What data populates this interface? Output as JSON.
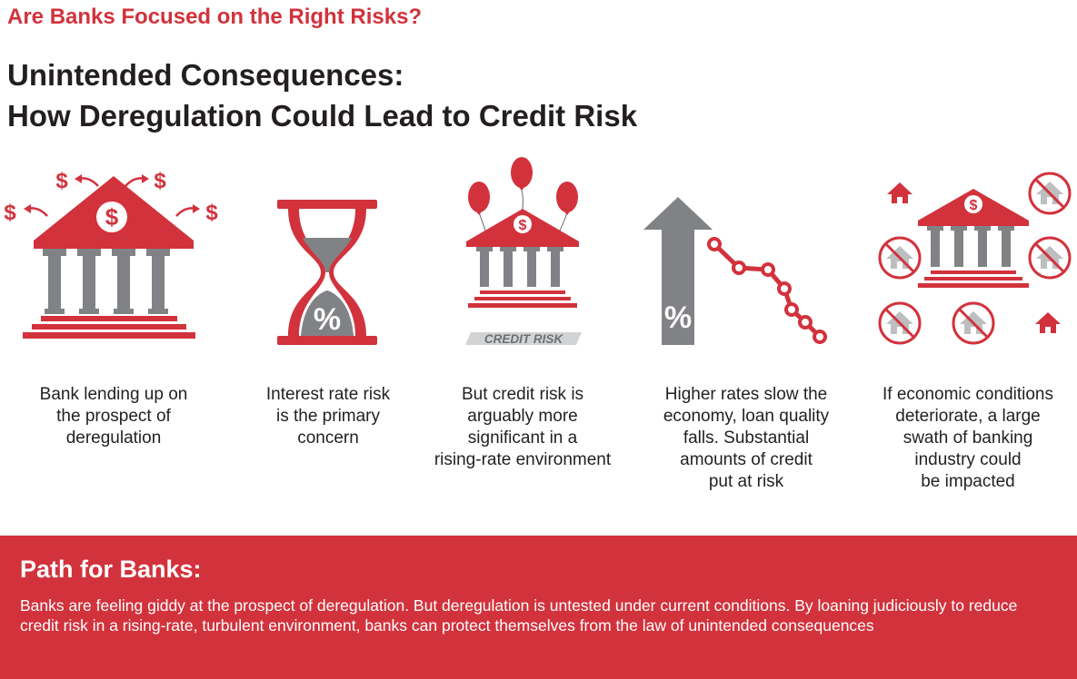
{
  "kicker": "Are Banks Focused on the Right Risks?",
  "title_line1": "Unintended Consequences:",
  "title_line2": "How Deregulation Could Lead to Credit Risk",
  "colors": {
    "red": "#d2323c",
    "gray": "#808285",
    "light_gray": "#bcbec0",
    "text": "#231f20"
  },
  "steps": [
    {
      "icon": "bank-with-dollars-icon",
      "caption": [
        "Bank lending up on",
        "the prospect of",
        "deregulation"
      ]
    },
    {
      "icon": "hourglass-icon",
      "glyph": "%",
      "caption": [
        "Interest rate risk",
        "is the primary",
        "concern"
      ]
    },
    {
      "icon": "bank-with-balloons-icon",
      "glyph": "$",
      "sign": "CREDIT RISK",
      "caption": [
        "But credit risk is",
        "arguably more",
        "significant in a",
        "rising-rate environment"
      ]
    },
    {
      "icon": "rising-rates-falling-quality-icon",
      "glyph": "%",
      "caption": [
        "Higher rates slow the",
        "economy, loan quality",
        "falls. Substantial",
        "amounts of credit",
        "put at risk"
      ]
    },
    {
      "icon": "bank-with-crossed-houses-icon",
      "glyph": "$",
      "caption": [
        "If economic conditions",
        "deteriorate, a large",
        "swath of banking",
        "industry could",
        "be impacted"
      ]
    }
  ],
  "currency_symbol": "$",
  "path": {
    "heading": "Path for Banks:",
    "body": "Banks are feeling giddy at the prospect of deregulation. But deregulation is untested under current conditions. By loaning judiciously to reduce credit risk in a rising-rate, turbulent environment, banks can protect themselves from the law of unintended consequences"
  }
}
